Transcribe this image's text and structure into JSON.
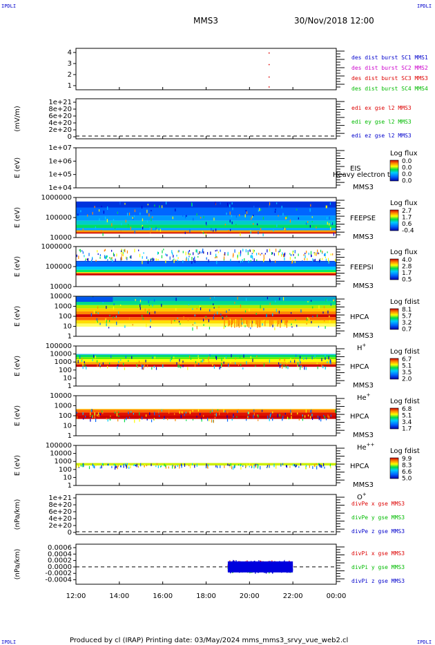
{
  "header": {
    "spacecraft": "MMS3",
    "datetime": "30/Nov/2018 12:00",
    "corner_label": "IPDLI"
  },
  "footer": {
    "text": "Produced by cl (IRAP)   Printing date: 03/May/2024   mms_mms3_srvy_vue_web2.cl"
  },
  "colors": {
    "red": "#dd0000",
    "green": "#00bb00",
    "blue": "#0000cc",
    "magenta": "#cc00cc",
    "dashed": "#000000"
  },
  "chart_data": [
    {
      "type": "scatter",
      "id": "des-dist-burst",
      "ylabel": "",
      "yticks": [
        "4",
        "3",
        "2",
        "1"
      ],
      "ylim": [
        0.5,
        4.5
      ],
      "legend": [
        {
          "text": "des dist burst SC1 MMS1",
          "color": "#0000cc"
        },
        {
          "text": "des dist burst SC2 MMS2",
          "color": "#cc00cc"
        },
        {
          "text": "des dist burst SC3 MMS3",
          "color": "#dd0000"
        },
        {
          "text": "des dist burst SC4 MMS4",
          "color": "#00bb00"
        }
      ]
    },
    {
      "type": "line",
      "id": "edi-e",
      "ylabel": "(mV/m)",
      "yticks": [
        "1e+21",
        "8e+20",
        "6e+20",
        "4e+20",
        "2e+20",
        "0"
      ],
      "legend": [
        {
          "text": "edi ex gse l2 MMS3",
          "color": "#dd0000"
        },
        {
          "text": "edi ey gse l2 MMS3",
          "color": "#00bb00"
        },
        {
          "text": "edi ez gse l2 MMS3",
          "color": "#0000cc"
        }
      ]
    },
    {
      "type": "heatmap",
      "id": "eis",
      "ylabel": "E (eV)",
      "yticks": [
        "1e+07",
        "1e+06",
        "1e+05",
        "1e+04"
      ],
      "instrument": [
        "EIS",
        "MMS3"
      ],
      "overlay_text": "Heavy electron to",
      "colorbar": {
        "title": "Log flux",
        "ticks": [
          "0.0",
          "0.0",
          "0.0",
          "0.0"
        ]
      }
    },
    {
      "type": "heatmap",
      "id": "feepse",
      "ylabel": "E (eV)",
      "yticks": [
        "1000000",
        "100000",
        "10000"
      ],
      "instrument": [
        "FEEPSE",
        "MMS3"
      ],
      "colorbar": {
        "title": "Log flux",
        "ticks": [
          "2.7",
          "1.7",
          "0.6",
          "-0.4"
        ]
      }
    },
    {
      "type": "heatmap",
      "id": "feepsi",
      "ylabel": "E (eV)",
      "yticks": [
        "1000000",
        "100000",
        "10000"
      ],
      "instrument": [
        "FEEPSI",
        "MMS3"
      ],
      "colorbar": {
        "title": "Log flux",
        "ticks": [
          "4.0",
          "2.8",
          "1.7",
          "0.5"
        ]
      }
    },
    {
      "type": "heatmap",
      "id": "hpca-h",
      "ylabel": "E (eV)",
      "yticks": [
        "10000",
        "1000",
        "100",
        "10",
        "1"
      ],
      "instrument": [
        "HPCA",
        "MMS3"
      ],
      "species": "H",
      "species_sup": "+",
      "colorbar": {
        "title": "Log fdist",
        "ticks": [
          "8.1",
          "5.7",
          "3.2",
          "0.7"
        ]
      }
    },
    {
      "type": "heatmap",
      "id": "hpca-he",
      "ylabel": "E (eV)",
      "yticks": [
        "100000",
        "10000",
        "1000",
        "100",
        "10",
        "1"
      ],
      "instrument": [
        "HPCA",
        "MMS3"
      ],
      "species": "He",
      "species_sup": "+",
      "colorbar": {
        "title": "Log fdist",
        "ticks": [
          "6.7",
          "5.1",
          "3.5",
          "2.0"
        ]
      }
    },
    {
      "type": "heatmap",
      "id": "hpca-hepp",
      "ylabel": "E (eV)",
      "yticks": [
        "10000",
        "1000",
        "100",
        "10",
        "1"
      ],
      "instrument": [
        "HPCA",
        "MMS3"
      ],
      "species": "He",
      "species_sup": "++",
      "colorbar": {
        "title": "Log fdist",
        "ticks": [
          "6.8",
          "5.1",
          "3.4",
          "1.7"
        ]
      }
    },
    {
      "type": "heatmap",
      "id": "hpca-o",
      "ylabel": "E (eV)",
      "yticks": [
        "100000",
        "10000",
        "1000",
        "100",
        "10",
        "1"
      ],
      "instrument": [
        "HPCA",
        "MMS3"
      ],
      "species": "O",
      "species_sup": "+",
      "colorbar": {
        "title": "Log fdist",
        "ticks": [
          "9.9",
          "8.3",
          "6.6",
          "5.0"
        ]
      }
    },
    {
      "type": "line",
      "id": "divpe",
      "ylabel": "(nPa/km)",
      "yticks": [
        "1e+21",
        "8e+20",
        "6e+20",
        "4e+20",
        "2e+20",
        "0"
      ],
      "legend": [
        {
          "text": "divPe x gse MMS3",
          "color": "#dd0000"
        },
        {
          "text": "divPe y gse MMS3",
          "color": "#00bb00"
        },
        {
          "text": "divPe z gse MMS3",
          "color": "#0000cc"
        }
      ]
    },
    {
      "type": "line",
      "id": "divpi",
      "ylabel": "(nPa/km)",
      "yticks": [
        "0.0006",
        "0.0004",
        "0.0002",
        "0.0000",
        "-0.0002",
        "-0.0004"
      ],
      "ylim": [
        -0.0005,
        0.0007
      ],
      "data_window_hours": [
        19.0,
        22.0
      ],
      "legend": [
        {
          "text": "divPi x gse MMS3",
          "color": "#dd0000"
        },
        {
          "text": "divPi y gse MMS3",
          "color": "#00bb00"
        },
        {
          "text": "divPi z gse MMS3",
          "color": "#0000cc"
        }
      ]
    }
  ],
  "xaxis": {
    "tick_labels": [
      "12:00",
      "14:00",
      "16:00",
      "18:00",
      "20:00",
      "22:00",
      "00:00"
    ],
    "range_hours": [
      12,
      24
    ]
  }
}
